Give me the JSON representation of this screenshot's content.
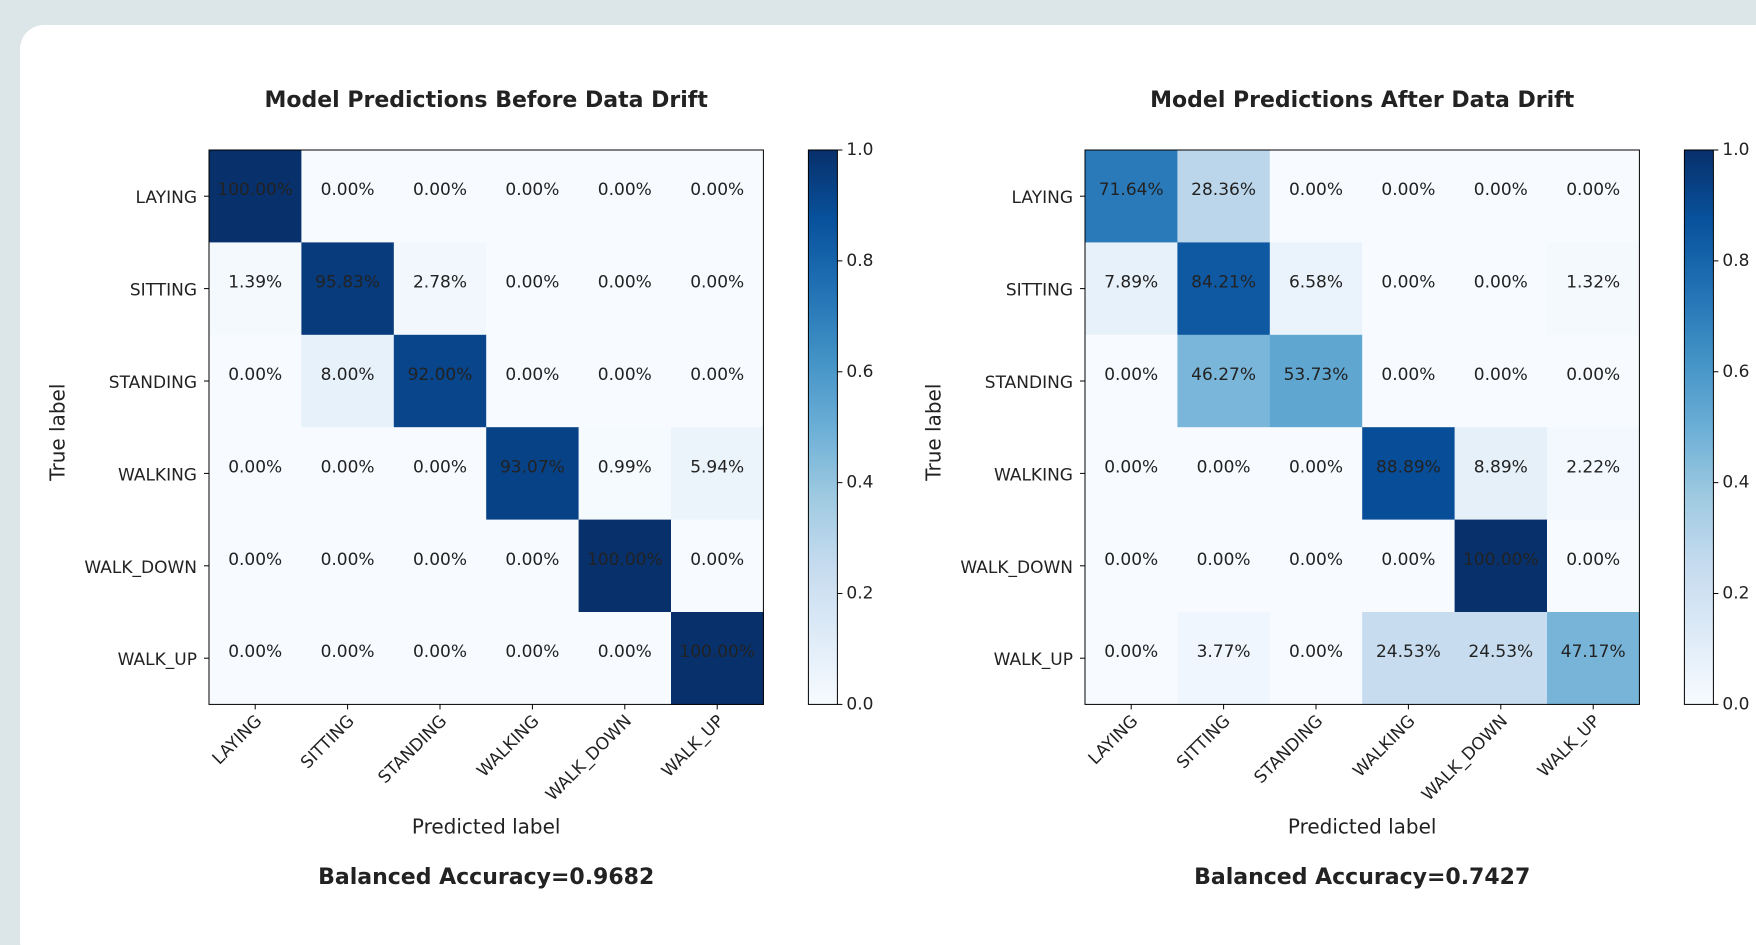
{
  "chart_data": [
    {
      "type": "heatmap",
      "title": "Model Predictions Before Data Drift",
      "xlabel": "Predicted label",
      "ylabel": "True label",
      "annotation": "Balanced Accuracy=0.9682",
      "categories": [
        "LAYING",
        "SITTING",
        "STANDING",
        "WALKING",
        "WALK_DOWN",
        "WALK_UP"
      ],
      "y_categories": [
        "LAYING",
        "SITTING",
        "STANDING",
        "WALKING",
        "WALK_DOWN",
        "WALK_UP"
      ],
      "values": [
        [
          1,
          0,
          0,
          0,
          0,
          0
        ],
        [
          0.0139,
          0.9583,
          0.0278,
          0,
          0,
          0
        ],
        [
          0,
          0.08,
          0.92,
          0,
          0,
          0
        ],
        [
          0,
          0,
          0,
          0.9307,
          0.0099,
          0.0594
        ],
        [
          0,
          0,
          0,
          0,
          1,
          0
        ],
        [
          0,
          0,
          0,
          0,
          0,
          1
        ]
      ],
      "value_labels": [
        [
          "100.00%",
          "0.00%",
          "0.00%",
          "0.00%",
          "0.00%",
          "0.00%"
        ],
        [
          "1.39%",
          "95.83%",
          "2.78%",
          "0.00%",
          "0.00%",
          "0.00%"
        ],
        [
          "0.00%",
          "8.00%",
          "92.00%",
          "0.00%",
          "0.00%",
          "0.00%"
        ],
        [
          "0.00%",
          "0.00%",
          "0.00%",
          "93.07%",
          "0.99%",
          "5.94%"
        ],
        [
          "0.00%",
          "0.00%",
          "0.00%",
          "0.00%",
          "100.00%",
          "0.00%"
        ],
        [
          "0.00%",
          "0.00%",
          "0.00%",
          "0.00%",
          "0.00%",
          "100.00%"
        ]
      ],
      "colormap": "Blues",
      "clim": [
        0,
        1
      ],
      "cticks": [
        {
          "value": 0,
          "label": "0.0"
        },
        0.2,
        0.4,
        0.6,
        0.8,
        {
          "value": 1,
          "label": "1.0"
        }
      ]
    },
    {
      "type": "heatmap",
      "title": "Model Predictions After Data Drift",
      "xlabel": "Predicted label",
      "ylabel": "True label",
      "annotation": "Balanced Accuracy=0.7427",
      "categories": [
        "LAYING",
        "SITTING",
        "STANDING",
        "WALKING",
        "WALK_DOWN",
        "WALK_UP"
      ],
      "y_categories": [
        "LAYING",
        "SITTING",
        "STANDING",
        "WALKING",
        "WALK_DOWN",
        "WALK_UP"
      ],
      "values": [
        [
          0.7164,
          0.2836,
          0,
          0,
          0,
          0
        ],
        [
          0.0789,
          0.8421,
          0.0658,
          0,
          0,
          0.0132
        ],
        [
          0,
          0.4627,
          0.5373,
          0,
          0,
          0
        ],
        [
          0,
          0,
          0,
          0.8889,
          0.0889,
          0.0222
        ],
        [
          0,
          0,
          0,
          0,
          1,
          0
        ],
        [
          0,
          0.0377,
          0,
          0.2453,
          0.2453,
          0.4717
        ]
      ],
      "value_labels": [
        [
          "71.64%",
          "28.36%",
          "0.00%",
          "0.00%",
          "0.00%",
          "0.00%"
        ],
        [
          "7.89%",
          "84.21%",
          "6.58%",
          "0.00%",
          "0.00%",
          "1.32%"
        ],
        [
          "0.00%",
          "46.27%",
          "53.73%",
          "0.00%",
          "0.00%",
          "0.00%"
        ],
        [
          "0.00%",
          "0.00%",
          "0.00%",
          "88.89%",
          "8.89%",
          "2.22%"
        ],
        [
          "0.00%",
          "0.00%",
          "0.00%",
          "0.00%",
          "100.00%",
          "0.00%"
        ],
        [
          "0.00%",
          "3.77%",
          "0.00%",
          "24.53%",
          "24.53%",
          "47.17%"
        ]
      ],
      "colormap": "Blues",
      "clim": [
        0,
        1
      ],
      "cticks": [
        {
          "value": 0,
          "label": "0.0"
        },
        0.2,
        0.4,
        0.6,
        0.8,
        {
          "value": 1,
          "label": "1.0"
        }
      ]
    }
  ]
}
